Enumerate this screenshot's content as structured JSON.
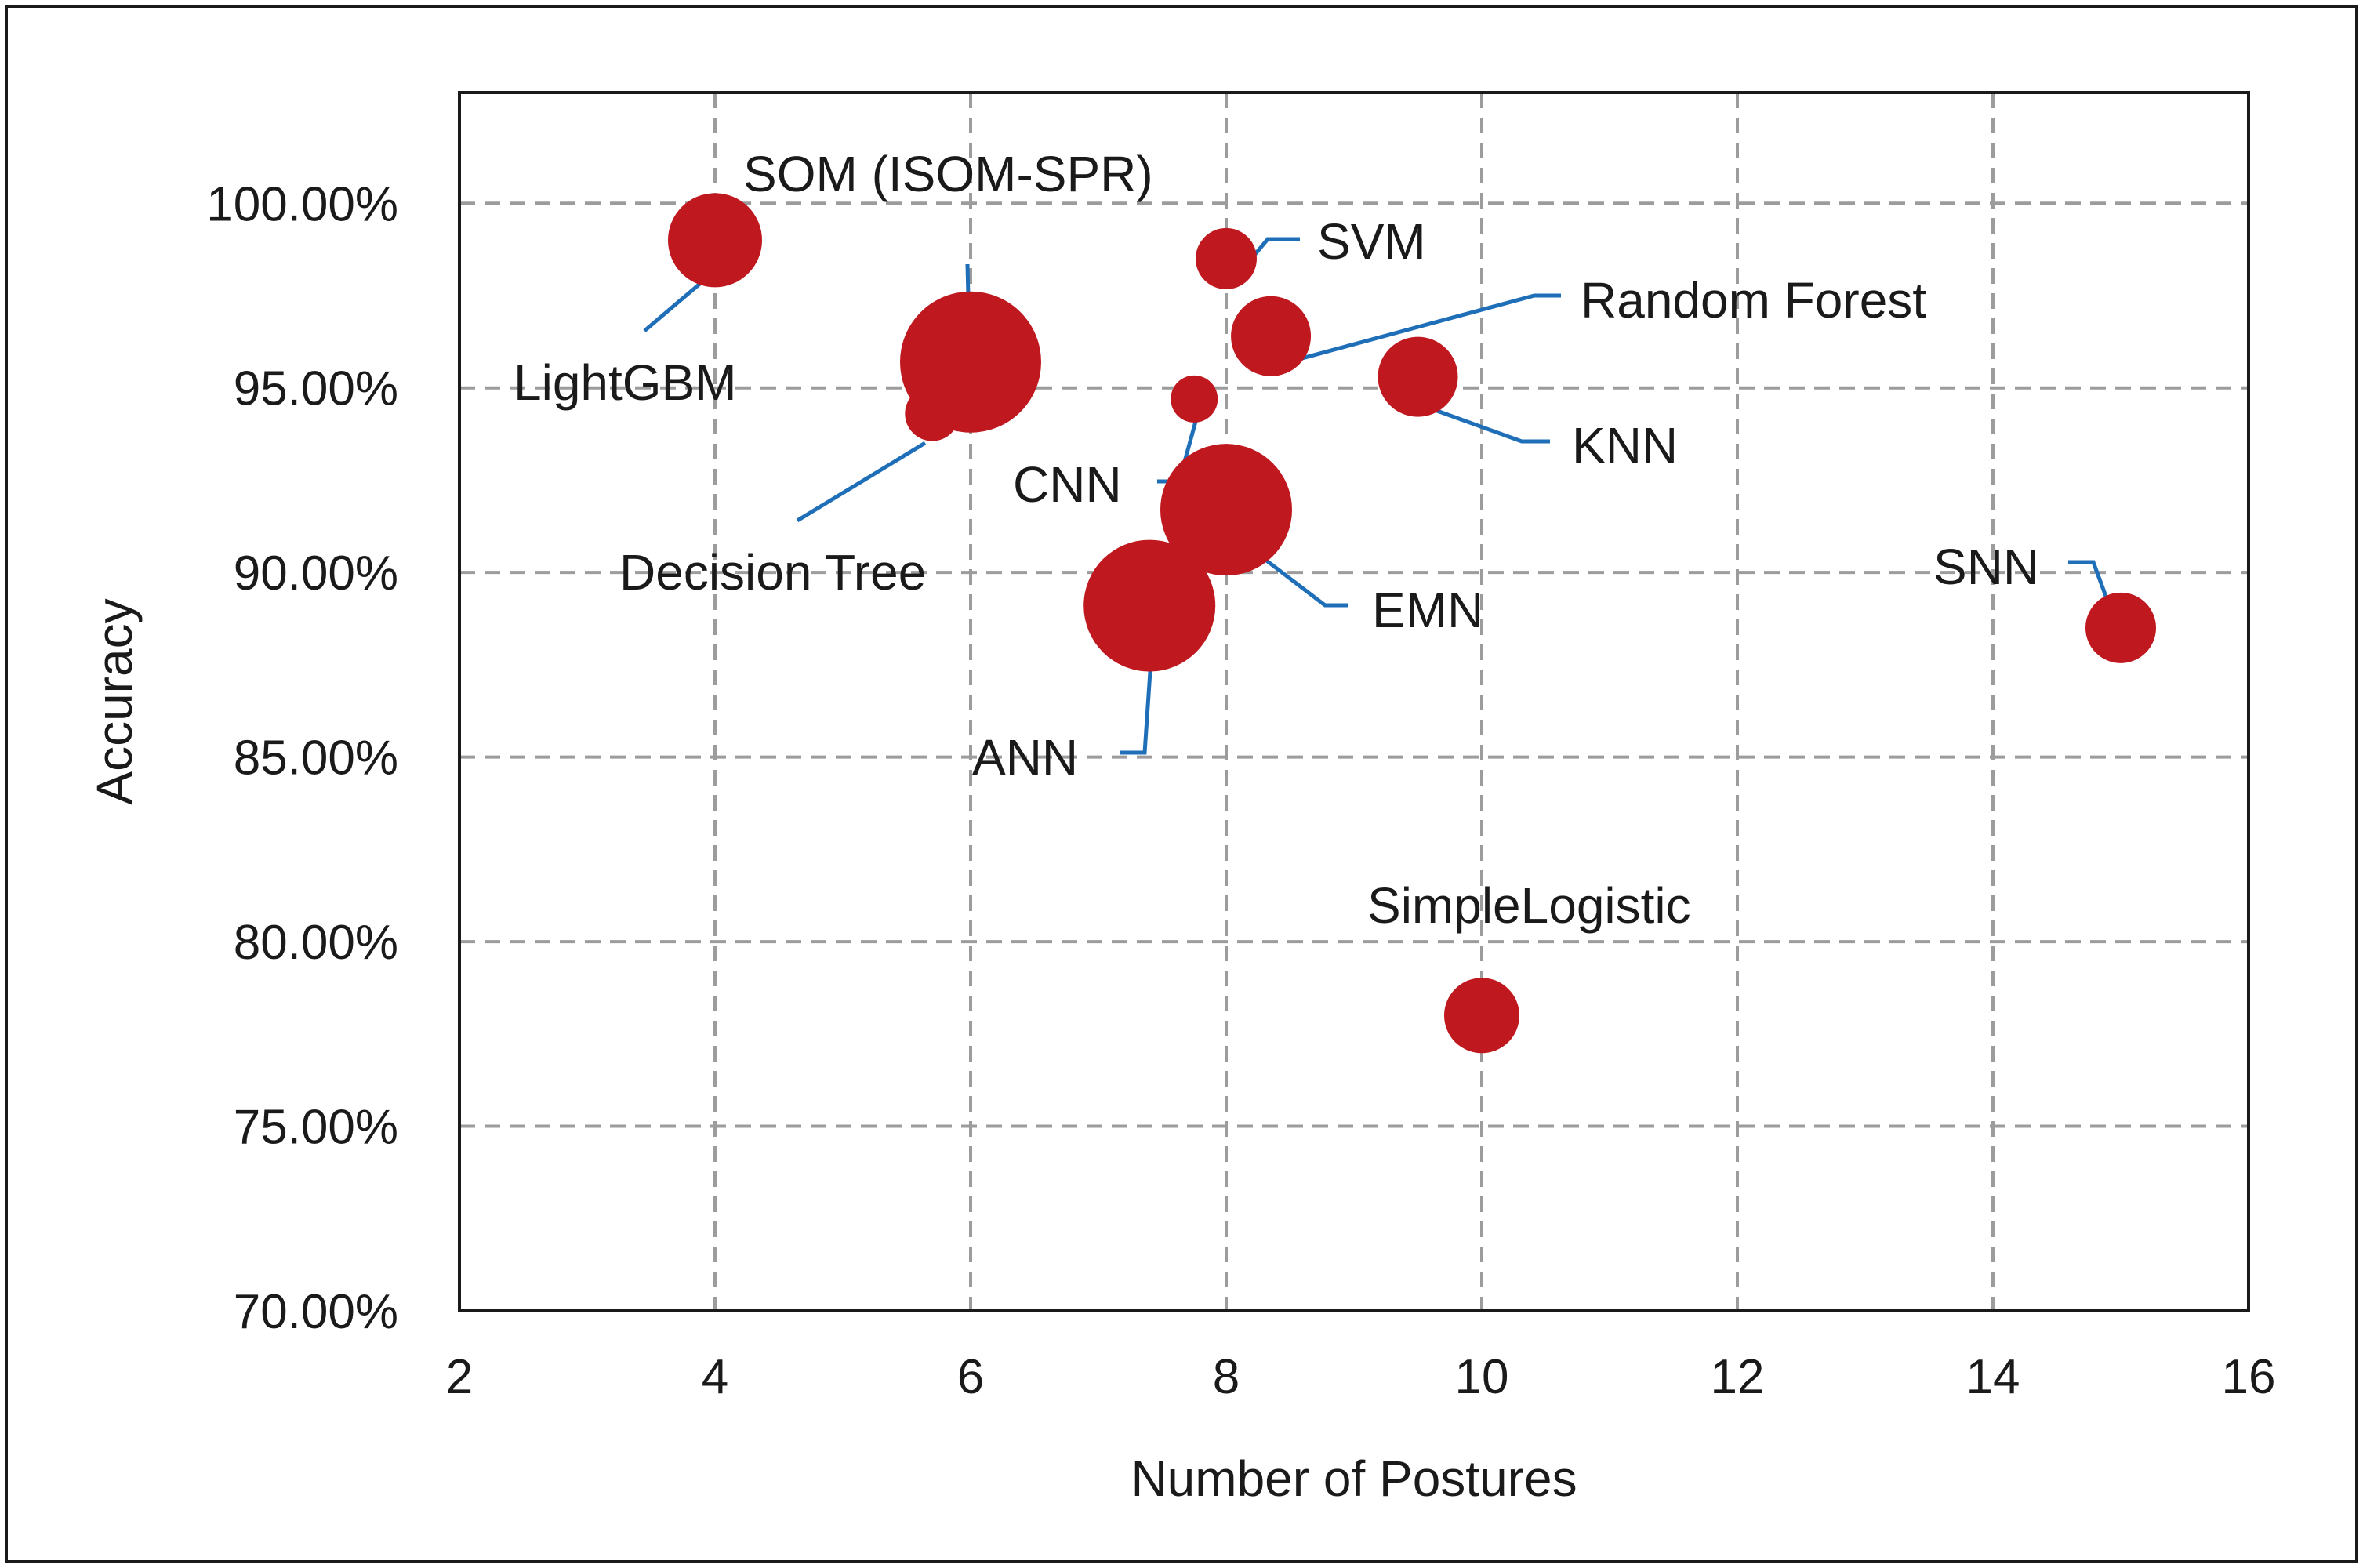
{
  "chart_data": {
    "type": "scatter",
    "subtype": "bubble",
    "title": "",
    "xlabel": "Number of Postures",
    "ylabel": "Accuracy",
    "xlim": [
      2,
      16
    ],
    "ylim": [
      0.7,
      1.03
    ],
    "x_ticks": [
      2,
      4,
      6,
      8,
      10,
      12,
      14,
      16
    ],
    "x_tick_labels": [
      "2",
      "4",
      "6",
      "8",
      "10",
      "12",
      "14",
      "16"
    ],
    "y_ticks": [
      0.7,
      0.75,
      0.8,
      0.85,
      0.9,
      0.95,
      1.0
    ],
    "y_tick_labels": [
      "70.00%",
      "75.00%",
      "80.00%",
      "85.00%",
      "90.00%",
      "95.00%",
      "100.00%"
    ],
    "grid": true,
    "legend": "none",
    "colors": {
      "point": "#c0181f",
      "leader": "#1f6fb8",
      "grid": "#9c9c9c",
      "axis": "#1a1a1a"
    },
    "points": [
      {
        "label": "LightGBM",
        "x": 4.0,
        "y": 0.99,
        "size": 1.0
      },
      {
        "label": "SOM (ISOM-SPR)",
        "x": 6.0,
        "y": 0.957,
        "size": 1.5
      },
      {
        "label": "Decision Tree",
        "x": 5.7,
        "y": 0.943,
        "size": 0.58
      },
      {
        "label": "SVM",
        "x": 8.0,
        "y": 0.985,
        "size": 0.65
      },
      {
        "label": "Random Forest",
        "x": 8.35,
        "y": 0.964,
        "size": 0.85
      },
      {
        "label": "CNN",
        "x": 7.75,
        "y": 0.947,
        "size": 0.5
      },
      {
        "label": "KNN",
        "x": 9.5,
        "y": 0.953,
        "size": 0.85
      },
      {
        "label": "EMN",
        "x": 8.0,
        "y": 0.917,
        "size": 1.4
      },
      {
        "label": "ANN",
        "x": 7.4,
        "y": 0.891,
        "size": 1.4
      },
      {
        "label": "SNN",
        "x": 15.0,
        "y": 0.885,
        "size": 0.75
      },
      {
        "label": "SimpleLogistic",
        "x": 10.0,
        "y": 0.78,
        "size": 0.8
      }
    ]
  }
}
